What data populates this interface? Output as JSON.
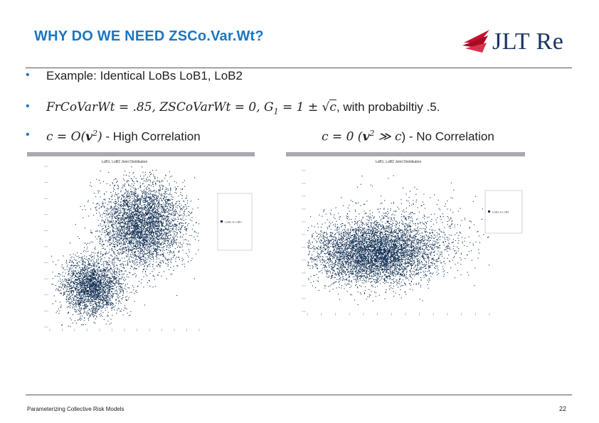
{
  "slide": {
    "title": "WHY DO WE NEED ZSCo.Var.Wt?",
    "logo_text": "JLT Re",
    "footer_text": "Parameterizing Collective Risk Models",
    "page_number": "22"
  },
  "bullets": {
    "b1_text": "Example: Identical LoBs LoB1, LoB2",
    "b2": {
      "fr": "FrCoVarWt",
      "eq1": " = .85, ",
      "zs": "ZSCoVarWt",
      "eq2": " = 0, ",
      "g": "G",
      "g_sub": "1",
      "eq3": " = 1 ± ",
      "c": "c",
      "tail": ", with probabiltiy .5."
    },
    "b3": {
      "c": "c",
      "eq": " = ",
      "o": "O",
      "v": "v",
      "sup": "2",
      "tail": " - High Correlation"
    },
    "b3_right": {
      "c": "c",
      "eq": " = 0 (",
      "v": "v",
      "sup": "2",
      "gg": " ≫ ",
      "c2": "c",
      "tail": ") - No Correlation"
    },
    "accent": "#1a76c2"
  },
  "chart_data": [
    {
      "type": "scatter",
      "title": "LoB1, LoB2 Joint Distribution",
      "toolbar_label": "",
      "xlabel": "",
      "ylabel": "",
      "legend": [
        "LoB1 & LoB2"
      ],
      "legend_position": "right",
      "clusters": [
        {
          "center": [
            0.28,
            0.25
          ],
          "spread": [
            0.1,
            0.09
          ],
          "count": 2600
        },
        {
          "center": [
            0.62,
            0.64
          ],
          "spread": [
            0.14,
            0.13
          ],
          "count": 4200
        }
      ],
      "color": "#0f2d52"
    },
    {
      "type": "scatter",
      "title": "LoB1, LoB2 Joint Distribution",
      "toolbar_label": "",
      "xlabel": "",
      "ylabel": "",
      "legend": [
        "LoB1 & LoB2"
      ],
      "legend_position": "right",
      "clusters": [
        {
          "center": [
            0.36,
            0.42
          ],
          "spread": [
            0.17,
            0.11
          ],
          "count": 6000
        }
      ],
      "color": "#0f2d52"
    }
  ]
}
